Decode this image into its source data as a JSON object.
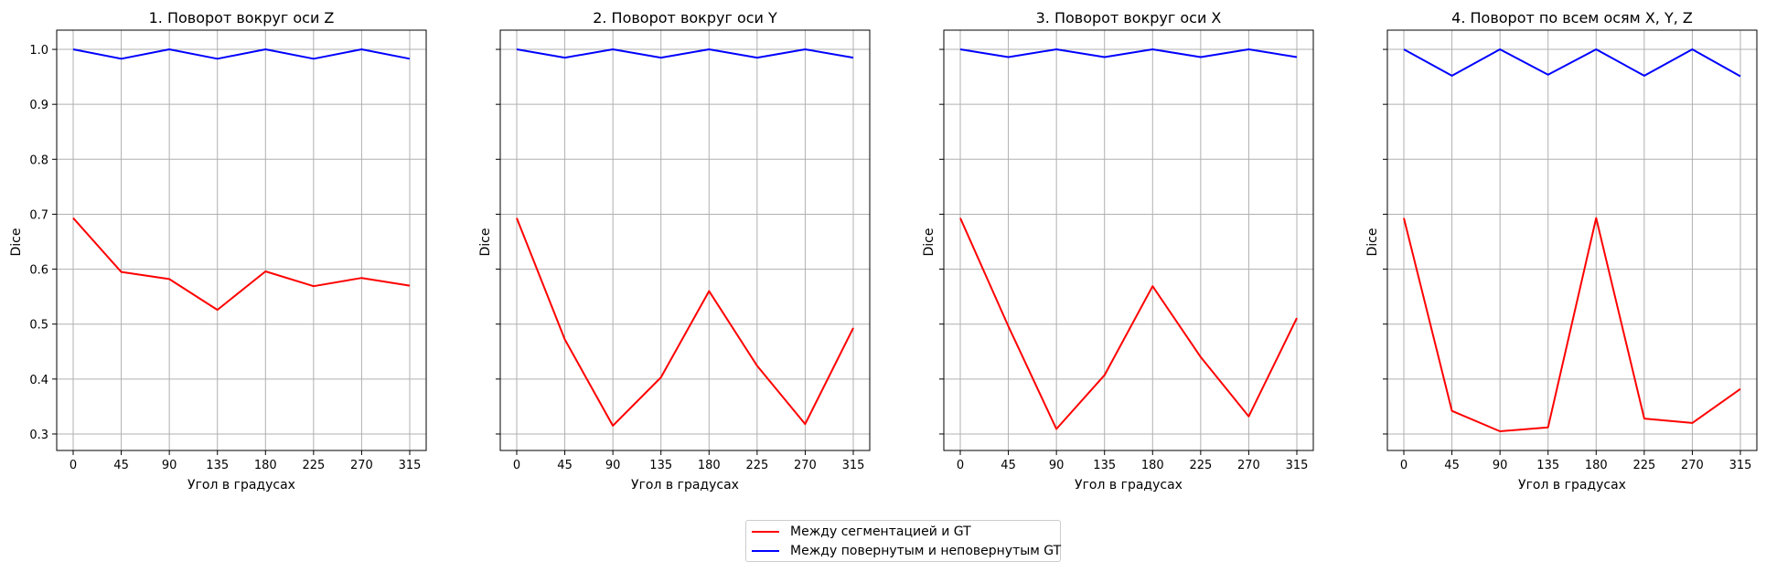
{
  "chart_data": {
    "type": "line",
    "ylabel": "Dice",
    "xlabel": "Угол в градусах",
    "x": [
      0,
      45,
      90,
      135,
      180,
      225,
      270,
      315
    ],
    "xticks": [
      "0",
      "45",
      "90",
      "135",
      "180",
      "225",
      "270",
      "315"
    ],
    "yticks": [
      "0.3",
      "0.4",
      "0.5",
      "0.6",
      "0.7",
      "0.8",
      "0.9",
      "1.0"
    ],
    "ylim": [
      0.27,
      1.035
    ],
    "grid": true,
    "sharey": true,
    "legend_placement": "bottom-center",
    "colors": {
      "seg": "#ff0000",
      "gt": "#0000ff"
    },
    "legend": [
      {
        "label": "Между сегментацией и GT",
        "color": "#ff0000"
      },
      {
        "label": "Между повернутым и неповернутым GT",
        "color": "#0000ff"
      }
    ],
    "panels": [
      {
        "title": "1. Поворот вокруг оси Z",
        "series": [
          {
            "name": "Между сегментацией и GT",
            "color": "#ff0000",
            "values": [
              0.693,
              0.595,
              0.582,
              0.526,
              0.596,
              0.569,
              0.584,
              0.57
            ]
          },
          {
            "name": "Между повернутым и неповернутым GT",
            "color": "#0000ff",
            "values": [
              1.0,
              0.983,
              1.0,
              0.983,
              1.0,
              0.983,
              1.0,
              0.983
            ]
          }
        ]
      },
      {
        "title": "2. Поворот вокруг оси Y",
        "series": [
          {
            "name": "Между сегментацией и GT",
            "color": "#ff0000",
            "values": [
              0.693,
              0.472,
              0.315,
              0.403,
              0.56,
              0.424,
              0.318,
              0.493
            ]
          },
          {
            "name": "Между повернутым и неповернутым GT",
            "color": "#0000ff",
            "values": [
              1.0,
              0.985,
              1.0,
              0.985,
              1.0,
              0.985,
              1.0,
              0.985
            ]
          }
        ]
      },
      {
        "title": "3. Поворот вокруг оси X",
        "series": [
          {
            "name": "Между сегментацией и GT",
            "color": "#ff0000",
            "values": [
              0.693,
              0.496,
              0.309,
              0.407,
              0.569,
              0.44,
              0.332,
              0.511
            ]
          },
          {
            "name": "Между повернутым и неповернутым GT",
            "color": "#0000ff",
            "values": [
              1.0,
              0.986,
              1.0,
              0.986,
              1.0,
              0.986,
              1.0,
              0.986
            ]
          }
        ]
      },
      {
        "title": "4. Поворот по всем осям X, Y, Z",
        "series": [
          {
            "name": "Между сегментацией и GT",
            "color": "#ff0000",
            "values": [
              0.693,
              0.342,
              0.305,
              0.312,
              0.693,
              0.328,
              0.32,
              0.382
            ]
          },
          {
            "name": "Между повернутым и неповернутым GT",
            "color": "#0000ff",
            "values": [
              1.0,
              0.952,
              1.0,
              0.954,
              1.0,
              0.952,
              1.0,
              0.951
            ]
          }
        ]
      }
    ]
  }
}
